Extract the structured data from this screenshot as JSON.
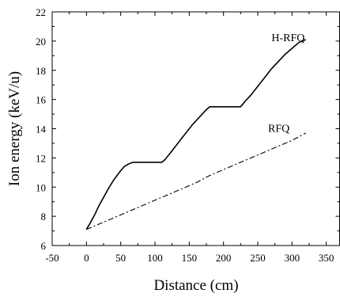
{
  "chart_data": {
    "type": "line",
    "title": "",
    "xlabel": "Distance (cm)",
    "ylabel": "Ion energy (keV/u)",
    "xlim": [
      -50,
      370
    ],
    "ylim": [
      6,
      22
    ],
    "x_ticks": [
      -50,
      0,
      50,
      100,
      150,
      200,
      250,
      300,
      350
    ],
    "y_ticks": [
      6,
      8,
      10,
      12,
      14,
      16,
      18,
      20,
      22
    ],
    "grid": false,
    "legend": "none",
    "series": [
      {
        "name": "H-RFQ",
        "style": "solid",
        "color": "#000000",
        "x": [
          0,
          5,
          12,
          18,
          25,
          32,
          40,
          48,
          55,
          62,
          68,
          75,
          80,
          90,
          100,
          110,
          115,
          125,
          135,
          145,
          155,
          165,
          175,
          180,
          188,
          195,
          205,
          215,
          225,
          232,
          240,
          250,
          260,
          270,
          280,
          290,
          300,
          310,
          320
        ],
        "y": [
          7.1,
          7.5,
          8.1,
          8.7,
          9.3,
          9.9,
          10.5,
          11.0,
          11.4,
          11.6,
          11.7,
          11.7,
          11.7,
          11.7,
          11.7,
          11.7,
          11.9,
          12.5,
          13.1,
          13.7,
          14.3,
          14.8,
          15.3,
          15.5,
          15.5,
          15.5,
          15.5,
          15.5,
          15.5,
          15.9,
          16.3,
          16.9,
          17.5,
          18.1,
          18.6,
          19.1,
          19.5,
          19.9,
          20.1
        ]
      },
      {
        "name": "RFQ",
        "style": "dash-dot",
        "color": "#000000",
        "x": [
          0,
          20,
          40,
          60,
          80,
          100,
          120,
          140,
          160,
          180,
          200,
          220,
          240,
          260,
          280,
          300,
          320
        ],
        "y": [
          7.1,
          7.5,
          7.9,
          8.3,
          8.7,
          9.1,
          9.5,
          9.9,
          10.3,
          10.8,
          11.2,
          11.6,
          12.0,
          12.4,
          12.8,
          13.2,
          13.7
        ]
      }
    ],
    "annotations": [
      {
        "text": "H-RFQ",
        "x": 270,
        "y": 20.2
      },
      {
        "text": "RFQ",
        "x": 265,
        "y": 14.0
      }
    ]
  }
}
